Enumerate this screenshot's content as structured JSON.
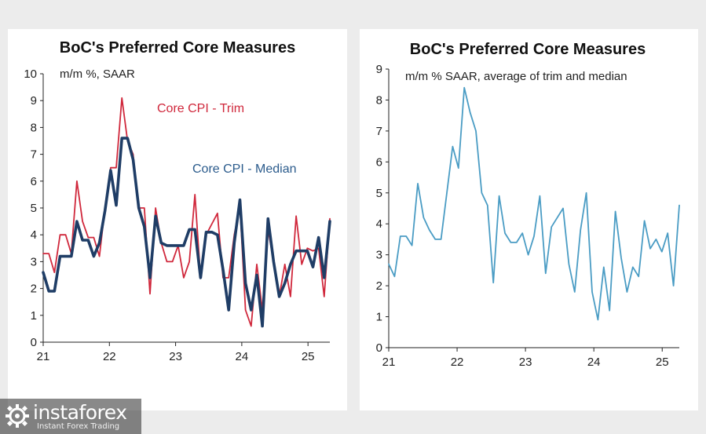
{
  "chart_data": [
    {
      "type": "line",
      "title": "BoC's Preferred Core Measures",
      "ylabel": "m/m %, SAAR",
      "xlabel": "",
      "ylim": [
        0,
        10
      ],
      "yticks": [
        0,
        1,
        2,
        3,
        4,
        5,
        6,
        7,
        8,
        9,
        10
      ],
      "xlim": [
        21,
        25.33
      ],
      "xticks": [
        "21",
        "22",
        "23",
        "24",
        "25"
      ],
      "annotations": [
        "Core CPI - Trim",
        "Core CPI - Median"
      ],
      "series": [
        {
          "name": "Core CPI - Trim",
          "color": "#d0283c",
          "values": [
            3.3,
            3.3,
            2.6,
            4.0,
            4.0,
            3.3,
            6.0,
            4.5,
            3.9,
            3.9,
            3.2,
            5.0,
            6.5,
            6.5,
            9.1,
            7.5,
            7.0,
            5.0,
            5.0,
            1.8,
            5.0,
            3.7,
            3.0,
            3.0,
            3.6,
            2.4,
            3.0,
            5.5,
            2.4,
            4.0,
            4.4,
            4.8,
            2.4,
            2.4,
            4.0,
            5.1,
            1.2,
            0.6,
            2.9,
            1.2,
            4.2,
            3.0,
            1.7,
            2.9,
            1.7,
            4.7,
            2.9,
            3.5,
            3.4,
            3.5,
            1.7,
            4.6
          ]
        },
        {
          "name": "Core CPI - Median",
          "color": "#1f3d66",
          "values": [
            2.6,
            1.9,
            1.9,
            3.2,
            3.2,
            3.2,
            4.5,
            3.8,
            3.8,
            3.2,
            3.7,
            4.9,
            6.4,
            5.1,
            7.6,
            7.6,
            6.8,
            5.0,
            4.3,
            2.4,
            4.7,
            3.7,
            3.6,
            3.6,
            3.6,
            3.6,
            4.2,
            4.2,
            2.4,
            4.1,
            4.1,
            4.0,
            2.7,
            1.2,
            3.7,
            5.3,
            2.2,
            1.2,
            2.5,
            0.6,
            4.6,
            3.0,
            1.7,
            2.2,
            2.9,
            3.4,
            3.4,
            3.4,
            2.8,
            3.9,
            2.4,
            4.5
          ]
        }
      ]
    },
    {
      "type": "line",
      "title": "BoC's Preferred Core Measures",
      "ylabel": "m/m % SAAR, average of trim and median",
      "xlabel": "",
      "ylim": [
        0,
        9
      ],
      "yticks": [
        0,
        1,
        2,
        3,
        4,
        5,
        6,
        7,
        8,
        9
      ],
      "xlim": [
        21,
        25.25
      ],
      "xticks": [
        "21",
        "22",
        "23",
        "24",
        "25"
      ],
      "series": [
        {
          "name": "Average of trim and median",
          "color": "#4a9cc4",
          "values": [
            2.7,
            2.3,
            3.6,
            3.6,
            3.3,
            5.3,
            4.2,
            3.8,
            3.5,
            3.5,
            5.0,
            6.5,
            5.8,
            8.4,
            7.6,
            7.0,
            5.0,
            4.6,
            2.1,
            4.9,
            3.7,
            3.4,
            3.4,
            3.7,
            3.0,
            3.6,
            4.9,
            2.4,
            3.9,
            4.2,
            4.5,
            2.7,
            1.8,
            3.8,
            5.0,
            1.8,
            0.9,
            2.6,
            1.2,
            4.4,
            2.9,
            1.8,
            2.6,
            2.3,
            4.1,
            3.2,
            3.5,
            3.1,
            3.7,
            2.0,
            4.6
          ]
        }
      ]
    }
  ],
  "watermark": {
    "brand": "instaforex",
    "tagline": "Instant Forex Trading"
  }
}
